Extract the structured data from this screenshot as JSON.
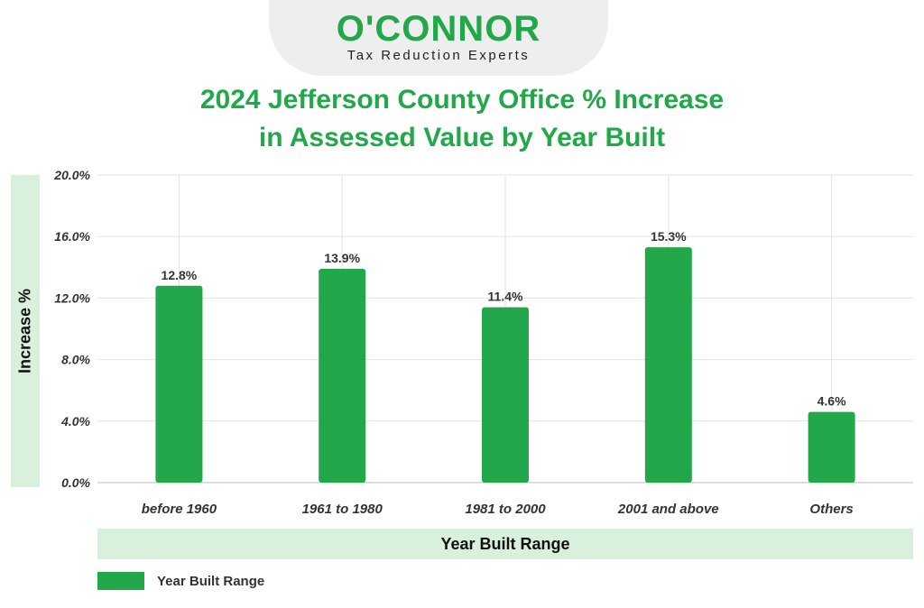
{
  "logo": {
    "name": "O'CONNOR",
    "tagline": "Tax Reduction Experts"
  },
  "colors": {
    "bar": "#22a84a",
    "title": "#22a84a",
    "band": "#d8f0dc"
  },
  "chart_data": {
    "type": "bar",
    "title_lines": [
      "2024 Jefferson County Office % Increase",
      "in Assessed Value by Year Built"
    ],
    "xlabel": "Year Built Range",
    "ylabel": "Increase %",
    "categories": [
      "before 1960",
      "1961 to 1980",
      "1981 to 2000",
      "2001 and above",
      "Others"
    ],
    "values": [
      12.8,
      13.9,
      11.4,
      15.3,
      4.6
    ],
    "value_labels": [
      "12.8%",
      "13.9%",
      "11.4%",
      "15.3%",
      "4.6%"
    ],
    "ylim": [
      0,
      20
    ],
    "yticks": [
      0,
      4,
      8,
      12,
      16,
      20
    ],
    "ytick_labels": [
      "0.0%",
      "4.0%",
      "8.0%",
      "12.0%",
      "16.0%",
      "20.0%"
    ],
    "grid": true,
    "legend": {
      "position": "bottom-left",
      "entries": [
        "Year Built Range"
      ]
    }
  }
}
